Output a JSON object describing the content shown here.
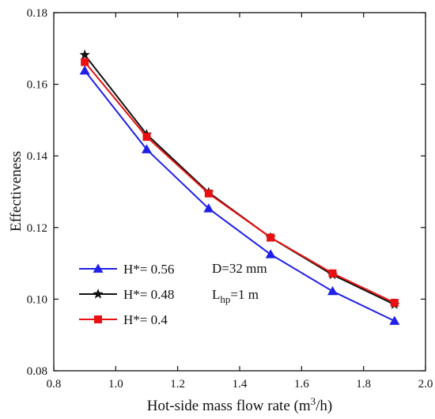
{
  "chart_data": {
    "type": "line",
    "title": "",
    "xlabel": "Hot-side mass flow rate (m",
    "xlabel_sup": "3",
    "xlabel_end": "/h)",
    "ylabel": "Effectiveness",
    "xlim": [
      0.8,
      2.0
    ],
    "ylim": [
      0.08,
      0.18
    ],
    "xticks": [
      "0.8",
      "1.0",
      "1.2",
      "1.4",
      "1.6",
      "1.8",
      "2.0"
    ],
    "yticks": [
      "0.08",
      "0.10",
      "0.12",
      "0.14",
      "0.16",
      "0.18"
    ],
    "grid": false,
    "legend_position": "bottom-left",
    "x": [
      0.9,
      1.1,
      1.3,
      1.5,
      1.7,
      1.9
    ],
    "series": [
      {
        "name": "H*= 0.56",
        "color": "#1f1fe8",
        "marker": "triangle",
        "values": [
          0.1638,
          0.1418,
          0.1253,
          0.1125,
          0.1022,
          0.0939
        ]
      },
      {
        "name": "H*= 0.48",
        "color": "#111111",
        "marker": "star",
        "values": [
          0.1682,
          0.146,
          0.1298,
          0.1172,
          0.1068,
          0.0985
        ]
      },
      {
        "name": "H*= 0.4",
        "color": "#e81010",
        "marker": "square",
        "values": [
          0.1662,
          0.1453,
          0.1295,
          0.1172,
          0.1072,
          0.099
        ]
      }
    ],
    "annotations": {
      "diameter": "D=32 mm",
      "length_main": "L",
      "length_sub": "hp",
      "length_end": "=1 m"
    }
  }
}
